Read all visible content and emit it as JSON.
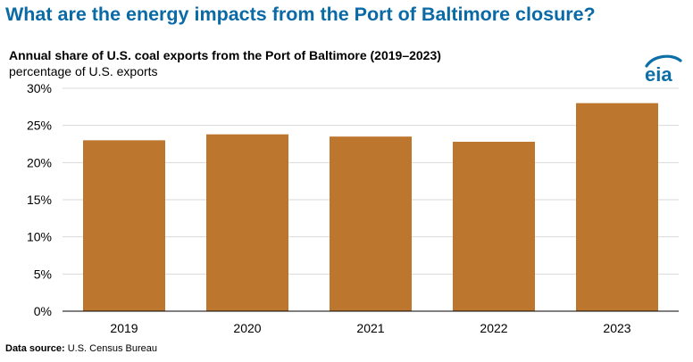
{
  "headline": "What are the energy impacts from the Port of Baltimore closure?",
  "brand": {
    "logo_text": "eia",
    "bar_color": "#BD762D",
    "headline_color": "#0A6AA6",
    "logo_color": "#0C6FA8"
  },
  "source": {
    "label": "Data source:",
    "text": "U.S. Census Bureau"
  },
  "chart_data": {
    "type": "bar",
    "title": "Annual share of U.S. coal exports from the Port of Baltimore (2019–2023)",
    "subtitle": "percentage of U.S. exports",
    "xlabel": "",
    "ylabel": "percentage of U.S. exports",
    "categories": [
      "2019",
      "2020",
      "2021",
      "2022",
      "2023"
    ],
    "values": [
      23.0,
      23.8,
      23.5,
      22.8,
      28.0
    ],
    "unit": "%",
    "ylim": [
      0,
      30
    ],
    "yticks": [
      0,
      5,
      10,
      15,
      20,
      25,
      30
    ],
    "ytick_labels": [
      "0%",
      "5%",
      "10%",
      "15%",
      "20%",
      "25%",
      "30%"
    ],
    "grid": true,
    "legend": "none"
  }
}
